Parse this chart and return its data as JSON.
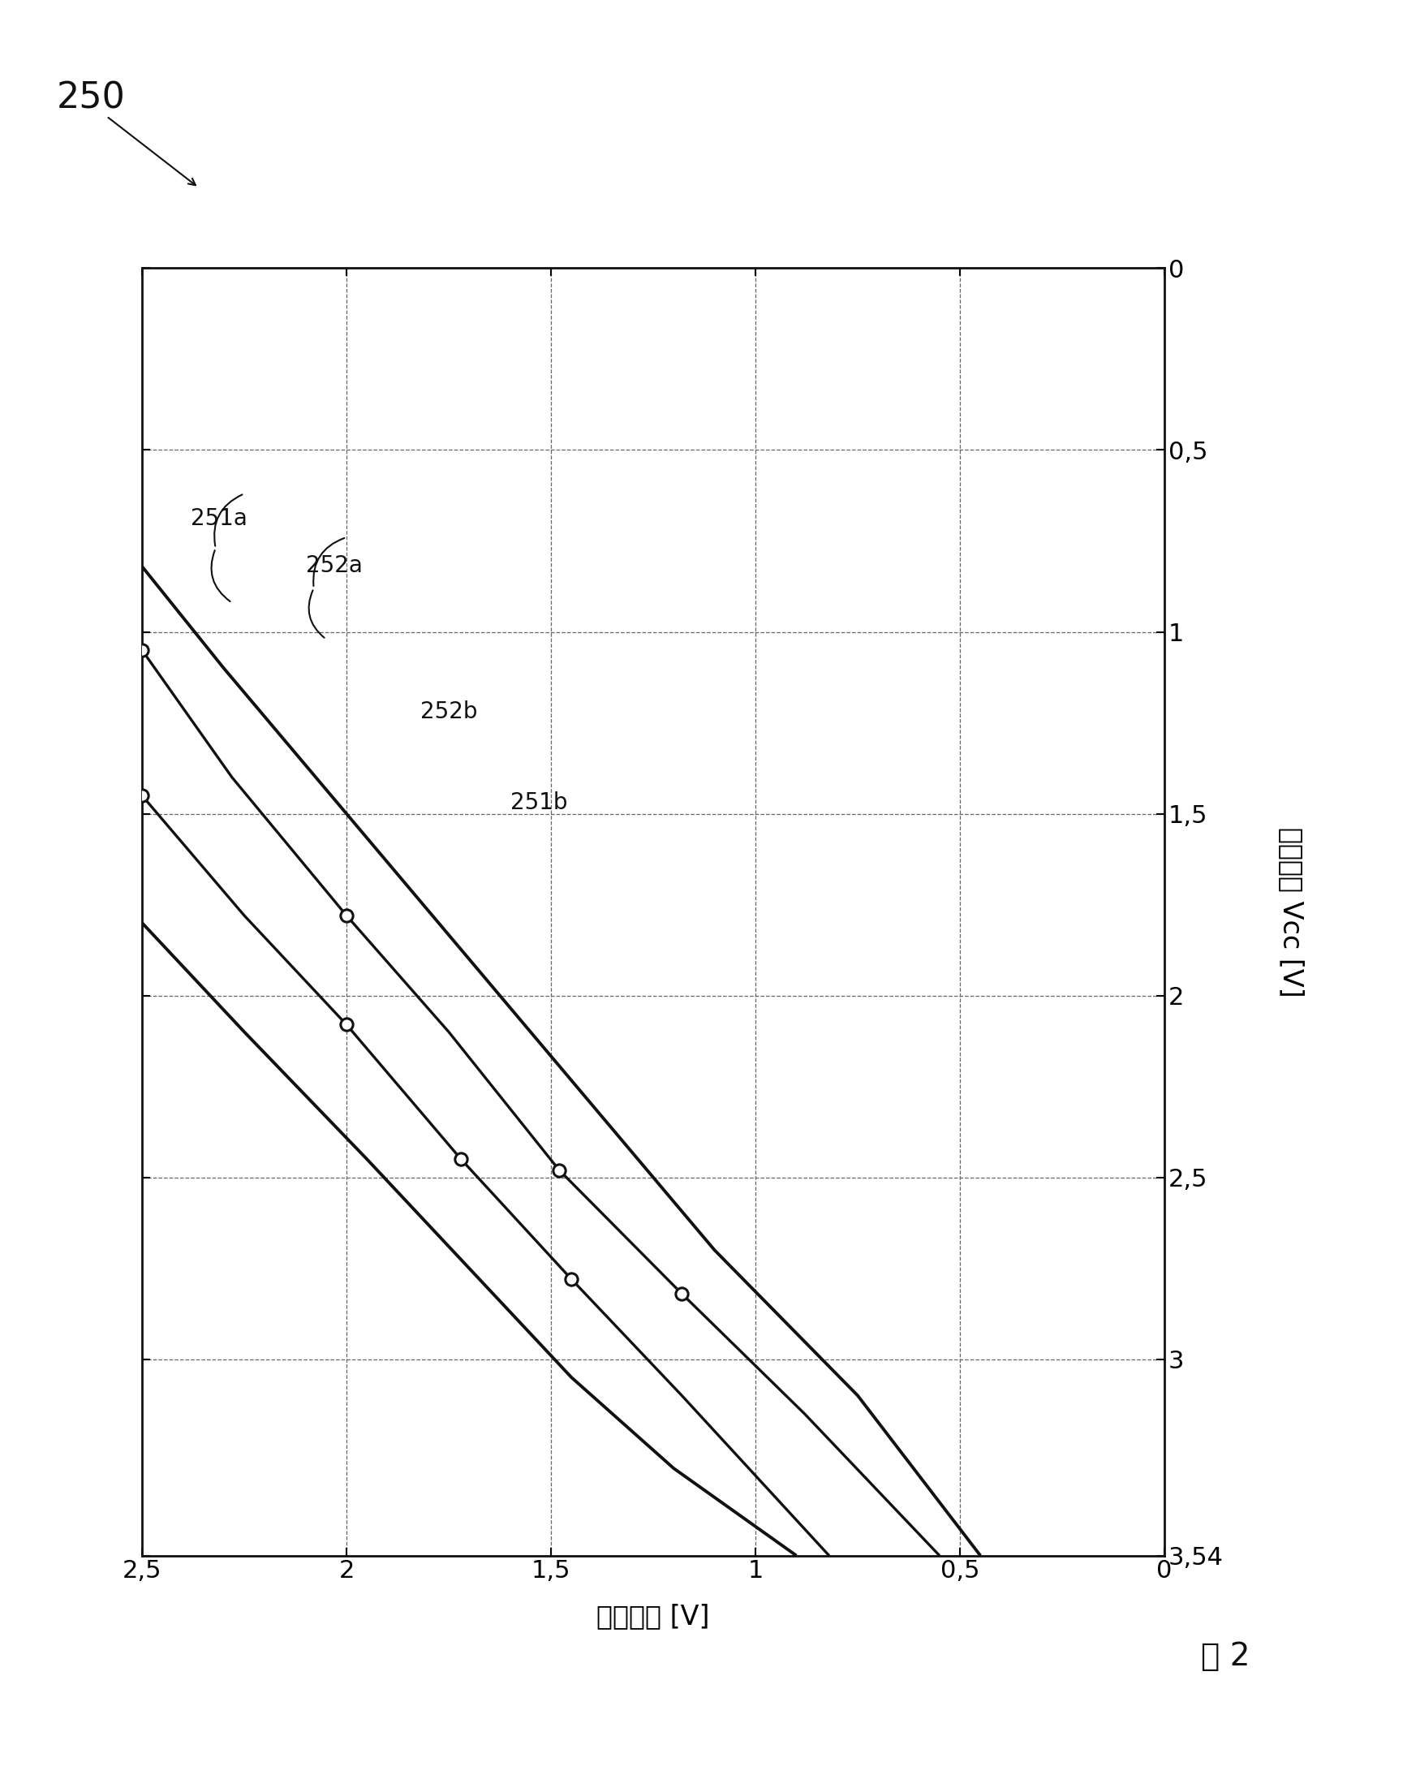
{
  "fig_label": "250",
  "caption": "图 2",
  "xlabel_rotated": "工作电压 Vcc [V]",
  "ylabel_rotated": "关系电压 [V]",
  "vcc_lim": [
    0,
    3.54
  ],
  "vout_lim": [
    0,
    2.5
  ],
  "vcc_ticks": [
    0,
    0.5,
    1.0,
    1.5,
    2.0,
    2.5,
    3.0,
    3.54
  ],
  "vout_ticks": [
    0,
    0.5,
    1.0,
    1.5,
    2.0,
    2.5
  ],
  "line_251a": {
    "vcc": [
      0.82,
      1.1,
      1.5,
      1.9,
      2.3,
      2.7,
      3.1,
      3.54
    ],
    "vout": [
      2.5,
      2.3,
      2.0,
      1.7,
      1.4,
      1.1,
      0.75,
      0.45
    ],
    "label": "251a",
    "has_markers": false
  },
  "line_252a": {
    "vcc": [
      1.05,
      1.4,
      1.78,
      2.1,
      2.48,
      2.82,
      3.15,
      3.54
    ],
    "vout": [
      2.5,
      2.28,
      2.0,
      1.75,
      1.48,
      1.18,
      0.88,
      0.55
    ],
    "label": "252a",
    "has_markers": true,
    "marker_vcc": [
      1.05,
      1.78,
      2.48,
      2.82
    ],
    "marker_vout": [
      2.5,
      2.0,
      1.48,
      1.18
    ]
  },
  "line_252b": {
    "vcc": [
      1.45,
      1.78,
      2.08,
      2.45,
      2.78,
      3.1,
      3.54
    ],
    "vout": [
      2.5,
      2.25,
      2.0,
      1.72,
      1.45,
      1.18,
      0.82
    ],
    "label": "252b",
    "has_markers": true,
    "marker_vcc": [
      1.45,
      2.08,
      2.45,
      2.78
    ],
    "marker_vout": [
      2.5,
      2.0,
      1.72,
      1.45
    ]
  },
  "line_251b": {
    "vcc": [
      1.8,
      2.1,
      2.45,
      2.75,
      3.05,
      3.3,
      3.54
    ],
    "vout": [
      2.5,
      2.25,
      1.95,
      1.7,
      1.45,
      1.2,
      0.9
    ],
    "label": "251b",
    "has_markers": false
  },
  "background_color": "#ffffff",
  "grid_color": "#666666",
  "line_color": "#111111",
  "label_251a_vcc": 0.9,
  "label_251a_vout": 2.42,
  "label_252a_vcc": 1.08,
  "label_252a_vout": 2.42,
  "label_252b_vcc": 1.5,
  "label_252b_vout": 2.42,
  "label_251b_vcc": 1.88,
  "label_251b_vout": 2.42
}
